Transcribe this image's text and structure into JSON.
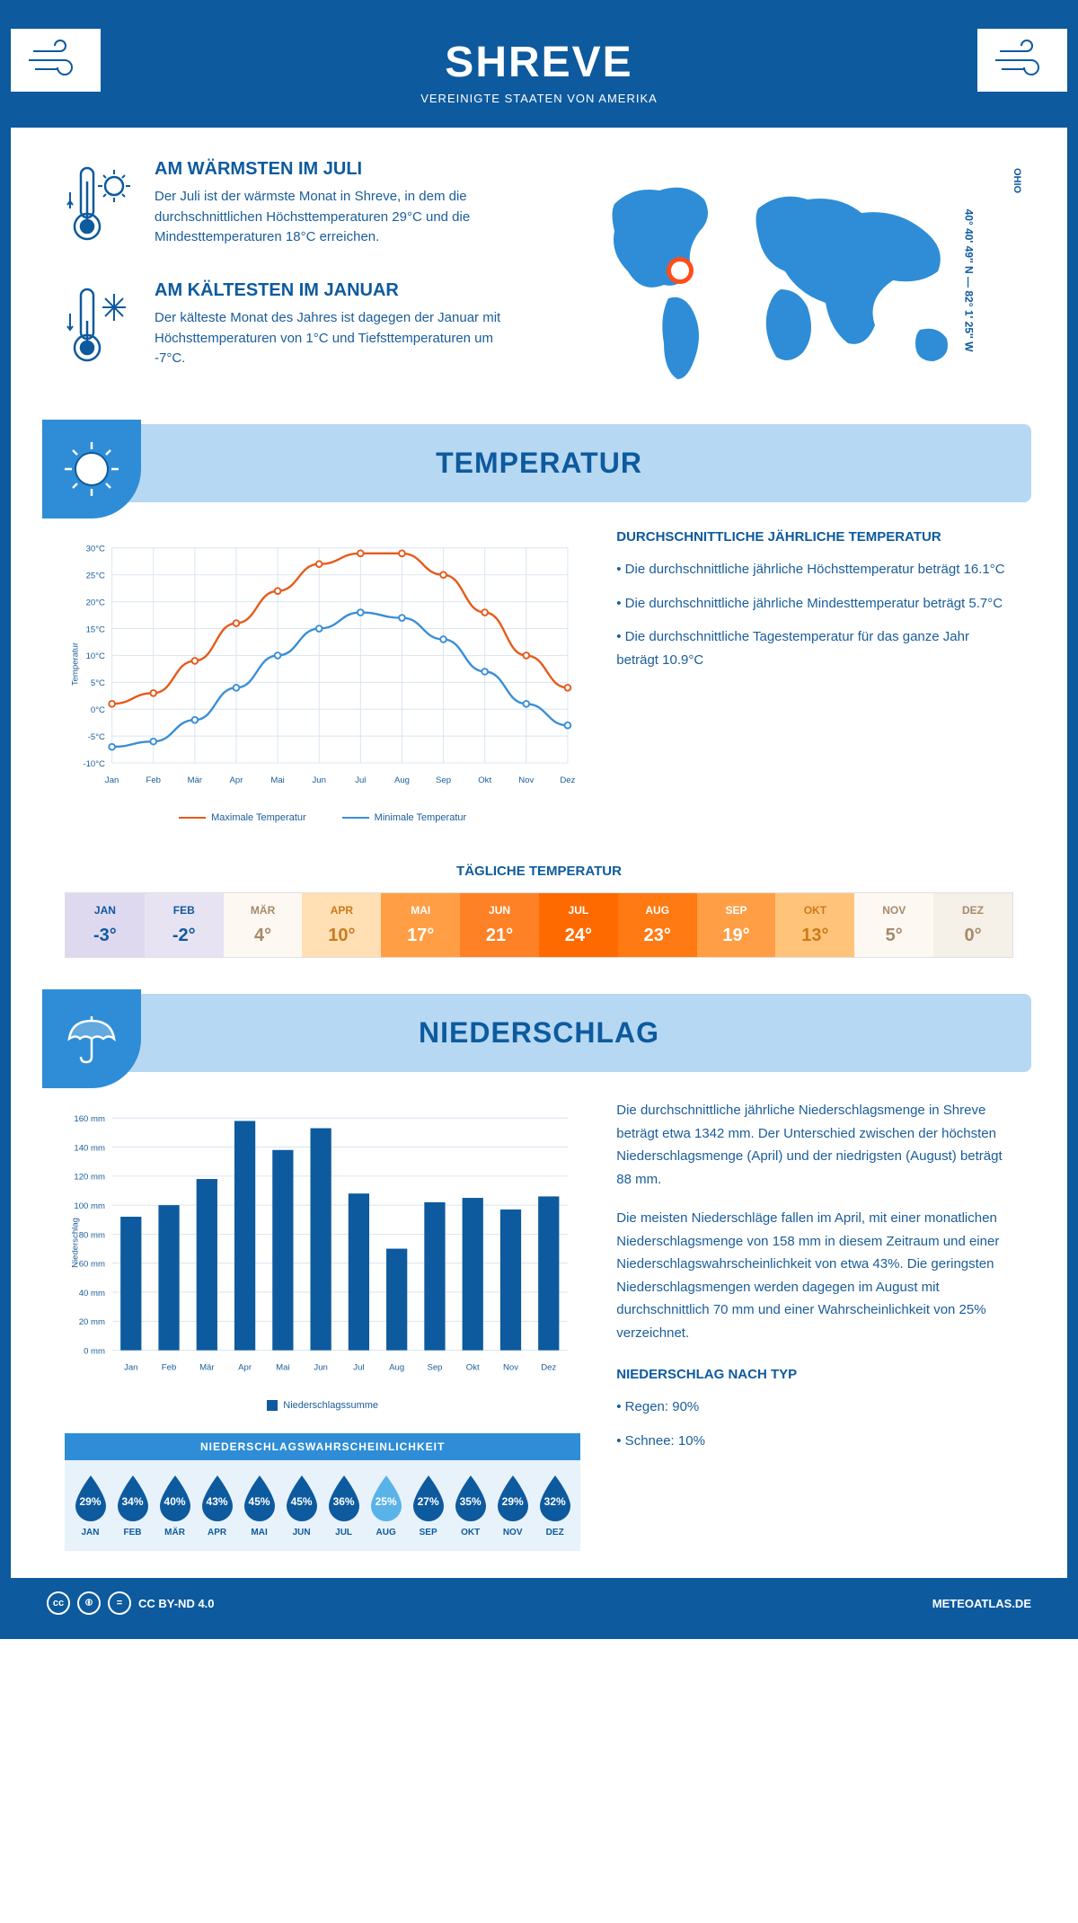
{
  "header": {
    "city": "SHREVE",
    "country": "VEREINIGTE STAATEN VON AMERIKA"
  },
  "location": {
    "coords": "40° 40' 49'' N — 82° 1' 25'' W",
    "state": "OHIO"
  },
  "warmest": {
    "title": "AM WÄRMSTEN IM JULI",
    "text": "Der Juli ist der wärmste Monat in Shreve, in dem die durchschnittlichen Höchsttemperaturen 29°C und die Mindesttemperaturen 18°C erreichen."
  },
  "coldest": {
    "title": "AM KÄLTESTEN IM JANUAR",
    "text": "Der kälteste Monat des Jahres ist dagegen der Januar mit Höchsttemperaturen von 1°C und Tiefsttemperaturen um -7°C."
  },
  "temp_section": {
    "title": "TEMPERATUR"
  },
  "temp_chart": {
    "months": [
      "Jan",
      "Feb",
      "Mär",
      "Apr",
      "Mai",
      "Jun",
      "Jul",
      "Aug",
      "Sep",
      "Okt",
      "Nov",
      "Dez"
    ],
    "max": [
      1,
      3,
      9,
      16,
      22,
      27,
      29,
      29,
      25,
      18,
      10,
      4
    ],
    "min": [
      -7,
      -6,
      -2,
      4,
      10,
      15,
      18,
      17,
      13,
      7,
      1,
      -3
    ],
    "ylim": [
      -10,
      30
    ],
    "ystep": 5,
    "max_color": "#e65a1a",
    "min_color": "#3a8ed6",
    "grid_color": "#d8e4ef",
    "bg": "#ffffff",
    "ylabel": "Temperatur",
    "legend_max": "Maximale Temperatur",
    "legend_min": "Minimale Temperatur"
  },
  "temp_text": {
    "title": "DURCHSCHNITTLICHE JÄHRLICHE TEMPERATUR",
    "bullets": [
      "• Die durchschnittliche jährliche Höchsttemperatur beträgt 16.1°C",
      "• Die durchschnittliche jährliche Mindesttemperatur beträgt 5.7°C",
      "• Die durchschnittliche Tagestemperatur für das ganze Jahr beträgt 10.9°C"
    ]
  },
  "daily_temp": {
    "title": "TÄGLICHE TEMPERATUR",
    "months": [
      "JAN",
      "FEB",
      "MÄR",
      "APR",
      "MAI",
      "JUN",
      "JUL",
      "AUG",
      "SEP",
      "OKT",
      "NOV",
      "DEZ"
    ],
    "values": [
      "-3°",
      "-2°",
      "4°",
      "10°",
      "17°",
      "21°",
      "24°",
      "23°",
      "19°",
      "13°",
      "5°",
      "0°"
    ],
    "bg_colors": [
      "#dfd9f0",
      "#e8e3f2",
      "#fdf8f2",
      "#ffdfb3",
      "#ff9e45",
      "#ff8126",
      "#ff6a00",
      "#ff7a12",
      "#ff9e45",
      "#ffc47a",
      "#fdf8f2",
      "#f5f0e8"
    ],
    "text_colors": [
      "#0d5a9e",
      "#0d5a9e",
      "#a68a6a",
      "#cc7a1a",
      "#ffffff",
      "#ffffff",
      "#ffffff",
      "#ffffff",
      "#ffffff",
      "#cc7a1a",
      "#a68a6a",
      "#a68a6a"
    ]
  },
  "precip_section": {
    "title": "NIEDERSCHLAG"
  },
  "precip_chart": {
    "months": [
      "Jan",
      "Feb",
      "Mär",
      "Apr",
      "Mai",
      "Jun",
      "Jul",
      "Aug",
      "Sep",
      "Okt",
      "Nov",
      "Dez"
    ],
    "values": [
      92,
      100,
      118,
      158,
      138,
      153,
      108,
      70,
      102,
      105,
      97,
      106
    ],
    "ylim": [
      0,
      160
    ],
    "ystep": 20,
    "bar_color": "#0d5a9e",
    "grid_color": "#d8e4ef",
    "ylabel": "Niederschlag",
    "legend": "Niederschlagssumme"
  },
  "precip_text": {
    "p1": "Die durchschnittliche jährliche Niederschlagsmenge in Shreve beträgt etwa 1342 mm. Der Unterschied zwischen der höchsten Niederschlagsmenge (April) und der niedrigsten (August) beträgt 88 mm.",
    "p2": "Die meisten Niederschläge fallen im April, mit einer monatlichen Niederschlagsmenge von 158 mm in diesem Zeitraum und einer Niederschlagswahrscheinlichkeit von etwa 43%. Die geringsten Niederschlagsmengen werden dagegen im August mit durchschnittlich 70 mm und einer Wahrscheinlichkeit von 25% verzeichnet.",
    "type_title": "NIEDERSCHLAG NACH TYP",
    "type_bullets": [
      "• Regen: 90%",
      "• Schnee: 10%"
    ]
  },
  "precip_prob": {
    "title": "NIEDERSCHLAGSWAHRSCHEINLICHKEIT",
    "months": [
      "JAN",
      "FEB",
      "MÄR",
      "APR",
      "MAI",
      "JUN",
      "JUL",
      "AUG",
      "SEP",
      "OKT",
      "NOV",
      "DEZ"
    ],
    "values": [
      "29%",
      "34%",
      "40%",
      "43%",
      "45%",
      "45%",
      "36%",
      "25%",
      "27%",
      "35%",
      "29%",
      "32%"
    ],
    "drop_fill": "#0d5a9e",
    "drop_min_fill": "#5ab3e8",
    "min_index": 7
  },
  "footer": {
    "license": "CC BY-ND 4.0",
    "site": "METEOATLAS.DE"
  },
  "colors": {
    "primary": "#0d5a9e",
    "light_blue": "#b6d8f2",
    "mid_blue": "#2e8dd6"
  }
}
